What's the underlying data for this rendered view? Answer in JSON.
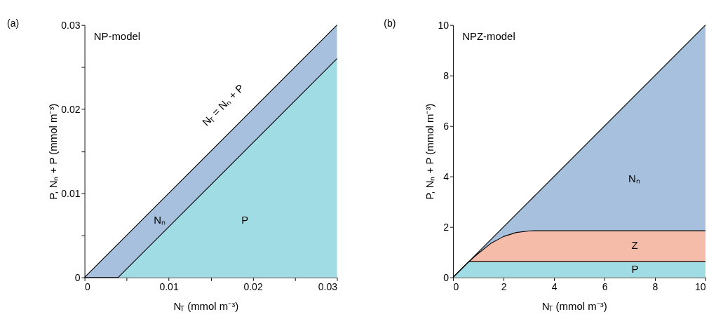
{
  "chart_data": [
    {
      "type": "area",
      "title": "(a)",
      "stacked": true,
      "xlabel": "N$_{T}$ (mmol m⁻³)",
      "ylabel": "P, Nₙ + P (mmol m⁻³)",
      "x": [
        0,
        0.004,
        0.03
      ],
      "series": [
        {
          "color": "#a0dce3",
          "values": [
            0,
            0,
            0.026
          ]
        },
        {
          "color": "#a7c0dd",
          "values": [
            0,
            0.004,
            0.004
          ]
        }
      ],
      "xlim": [
        0,
        0.03
      ],
      "ylim": [
        0,
        0.03
      ],
      "xticks": [
        0,
        {
          "value": 0.005,
          "label": null
        },
        0.01,
        {
          "value": 0.015,
          "label": null
        },
        0.02,
        {
          "value": 0.025,
          "label": null
        },
        0.03
      ],
      "yticks": [
        0,
        {
          "value": 0.005,
          "label": null
        },
        0.01,
        {
          "value": 0.015,
          "label": null
        },
        0.02,
        {
          "value": 0.025,
          "label": null
        },
        0.03
      ],
      "grid": false,
      "legend": false,
      "annotations": [
        "NP-model",
        "N$_{T}$ = Nₙ + P",
        "Nₙ",
        "P"
      ]
    },
    {
      "type": "area",
      "title": "(b)",
      "stacked": true,
      "xlabel": "N$_{T}$ (mmol m⁻³)",
      "ylabel": "P, Nₙ + P (mmol m⁻³)",
      "x": [
        0,
        0.62,
        1,
        1.5,
        2,
        2.5,
        3,
        3.2,
        10
      ],
      "series": [
        {
          "color": "#a0dce3",
          "values": [
            0,
            0.62,
            0.62,
            0.62,
            0.62,
            0.62,
            0.62,
            0.62,
            0.62
          ]
        },
        {
          "color": "#f6bcaa",
          "values": [
            0,
            0,
            0.33,
            0.73,
            1.0,
            1.16,
            1.22,
            1.23,
            1.23
          ]
        },
        {
          "color": "#a7c0dd",
          "values": [
            0,
            0,
            0.05,
            0.15,
            0.38,
            0.72,
            1.16,
            1.35,
            8.15
          ]
        }
      ],
      "xlim": [
        0,
        10
      ],
      "ylim": [
        0,
        10
      ],
      "xticks": [
        0,
        2,
        4,
        6,
        8,
        10
      ],
      "yticks": [
        0,
        2,
        4,
        6,
        8,
        10
      ],
      "grid": false,
      "legend": false,
      "annotations": [
        "NPZ-model",
        "Nₙ",
        "Z",
        "P"
      ]
    }
  ]
}
